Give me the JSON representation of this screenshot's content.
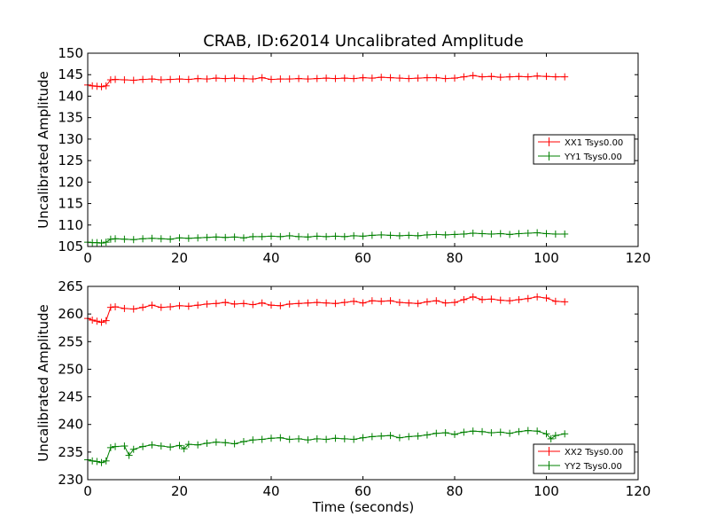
{
  "chart_data": [
    {
      "type": "line",
      "title": "CRAB, ID:62014 Uncalibrated Amplitude",
      "xlabel": "",
      "ylabel": "Uncalibrated Amplitude",
      "xlim": [
        0,
        120
      ],
      "ylim": [
        105,
        150
      ],
      "xticks": [
        "0",
        "20",
        "40",
        "60",
        "80",
        "100",
        "120"
      ],
      "yticks": [
        "105",
        "110",
        "115",
        "120",
        "125",
        "130",
        "135",
        "140",
        "145",
        "150"
      ],
      "legend_position": "center-right",
      "grid": false,
      "marker": "+",
      "series": [
        {
          "name": "XX1 Tsys0.00",
          "color": "#ff0000",
          "x": [
            0,
            1,
            2,
            3,
            4,
            5,
            6,
            8,
            10,
            12,
            14,
            16,
            18,
            20,
            22,
            24,
            26,
            28,
            30,
            32,
            34,
            36,
            38,
            40,
            42,
            44,
            46,
            48,
            50,
            52,
            54,
            56,
            58,
            60,
            62,
            64,
            66,
            68,
            70,
            72,
            74,
            76,
            78,
            80,
            82,
            84,
            86,
            88,
            90,
            92,
            94,
            96,
            98,
            100,
            102,
            104
          ],
          "values": [
            142.6,
            142.4,
            142.3,
            142.2,
            142.4,
            143.8,
            143.9,
            143.8,
            143.7,
            143.9,
            144.0,
            143.8,
            143.9,
            144.0,
            143.9,
            144.1,
            144.0,
            144.2,
            144.1,
            144.2,
            144.1,
            144.0,
            144.3,
            143.9,
            144.0,
            144.0,
            144.1,
            144.0,
            144.1,
            144.2,
            144.1,
            144.2,
            144.1,
            144.3,
            144.2,
            144.4,
            144.3,
            144.2,
            144.1,
            144.2,
            144.3,
            144.3,
            144.1,
            144.2,
            144.5,
            144.8,
            144.5,
            144.6,
            144.4,
            144.5,
            144.6,
            144.5,
            144.7,
            144.6,
            144.5,
            144.5
          ]
        },
        {
          "name": "YY1 Tsys0.00",
          "color": "#008000",
          "x": [
            0,
            1,
            2,
            3,
            4,
            5,
            6,
            8,
            10,
            12,
            14,
            16,
            18,
            20,
            22,
            24,
            26,
            28,
            30,
            32,
            34,
            36,
            38,
            40,
            42,
            44,
            46,
            48,
            50,
            52,
            54,
            56,
            58,
            60,
            62,
            64,
            66,
            68,
            70,
            72,
            74,
            76,
            78,
            80,
            82,
            84,
            86,
            88,
            90,
            92,
            94,
            96,
            98,
            100,
            102,
            104
          ],
          "values": [
            106.0,
            105.9,
            105.9,
            105.8,
            106.0,
            106.7,
            106.8,
            106.7,
            106.6,
            106.8,
            106.9,
            106.8,
            106.7,
            107.0,
            106.9,
            107.0,
            107.1,
            107.2,
            107.1,
            107.2,
            107.0,
            107.3,
            107.3,
            107.4,
            107.3,
            107.5,
            107.3,
            107.2,
            107.4,
            107.3,
            107.4,
            107.3,
            107.5,
            107.4,
            107.6,
            107.7,
            107.6,
            107.5,
            107.6,
            107.5,
            107.7,
            107.8,
            107.7,
            107.8,
            107.9,
            108.1,
            108.0,
            107.9,
            108.0,
            107.8,
            108.0,
            108.1,
            108.2,
            108.0,
            107.9,
            107.9
          ]
        }
      ]
    },
    {
      "type": "line",
      "title": "",
      "xlabel": "Time (seconds)",
      "ylabel": "Uncalibrated Amplitude",
      "xlim": [
        0,
        120
      ],
      "ylim": [
        230,
        265
      ],
      "xticks": [
        "0",
        "20",
        "40",
        "60",
        "80",
        "100",
        "120"
      ],
      "yticks": [
        "230",
        "235",
        "240",
        "245",
        "250",
        "255",
        "260",
        "265"
      ],
      "legend_position": "bottom-right",
      "grid": false,
      "marker": "+",
      "series": [
        {
          "name": "XX2 Tsys0.00",
          "color": "#ff0000",
          "x": [
            0,
            1,
            2,
            3,
            4,
            5,
            6,
            8,
            10,
            12,
            14,
            16,
            18,
            20,
            22,
            24,
            26,
            28,
            30,
            32,
            34,
            36,
            38,
            40,
            42,
            44,
            46,
            48,
            50,
            52,
            54,
            56,
            58,
            60,
            62,
            64,
            66,
            68,
            70,
            72,
            74,
            76,
            78,
            80,
            82,
            84,
            86,
            88,
            90,
            92,
            94,
            96,
            98,
            100,
            102,
            104
          ],
          "values": [
            259.2,
            258.9,
            258.7,
            258.5,
            258.8,
            261.2,
            261.3,
            261.0,
            260.9,
            261.2,
            261.6,
            261.2,
            261.3,
            261.5,
            261.4,
            261.6,
            261.8,
            261.9,
            262.1,
            261.8,
            261.9,
            261.7,
            262.0,
            261.6,
            261.5,
            261.8,
            261.9,
            262.0,
            262.1,
            262.0,
            261.9,
            262.1,
            262.3,
            262.0,
            262.4,
            262.3,
            262.4,
            262.1,
            262.0,
            261.9,
            262.2,
            262.4,
            262.0,
            262.1,
            262.6,
            263.1,
            262.6,
            262.7,
            262.5,
            262.4,
            262.6,
            262.8,
            263.1,
            262.9,
            262.3,
            262.2
          ]
        },
        {
          "name": "YY2 Tsys0.00",
          "color": "#008000",
          "x": [
            0,
            1,
            2,
            3,
            4,
            5,
            6,
            8,
            9,
            10,
            12,
            14,
            16,
            18,
            20,
            21,
            22,
            24,
            26,
            28,
            30,
            32,
            34,
            36,
            38,
            40,
            42,
            44,
            46,
            48,
            50,
            52,
            54,
            56,
            58,
            60,
            62,
            64,
            66,
            68,
            70,
            72,
            74,
            76,
            78,
            80,
            82,
            84,
            86,
            88,
            90,
            92,
            94,
            96,
            98,
            100,
            101,
            102,
            104
          ],
          "values": [
            233.6,
            233.4,
            233.3,
            233.1,
            233.4,
            235.8,
            236.0,
            236.1,
            234.4,
            235.5,
            236.0,
            236.3,
            236.1,
            235.9,
            236.2,
            235.6,
            236.4,
            236.3,
            236.6,
            236.8,
            236.7,
            236.5,
            236.9,
            237.2,
            237.3,
            237.5,
            237.6,
            237.3,
            237.4,
            237.2,
            237.4,
            237.3,
            237.5,
            237.4,
            237.3,
            237.6,
            237.8,
            237.9,
            238.0,
            237.6,
            237.8,
            237.9,
            238.1,
            238.4,
            238.5,
            238.2,
            238.6,
            238.8,
            238.7,
            238.5,
            238.6,
            238.4,
            238.7,
            238.9,
            238.8,
            238.3,
            237.4,
            238.0,
            238.3
          ]
        }
      ]
    }
  ]
}
